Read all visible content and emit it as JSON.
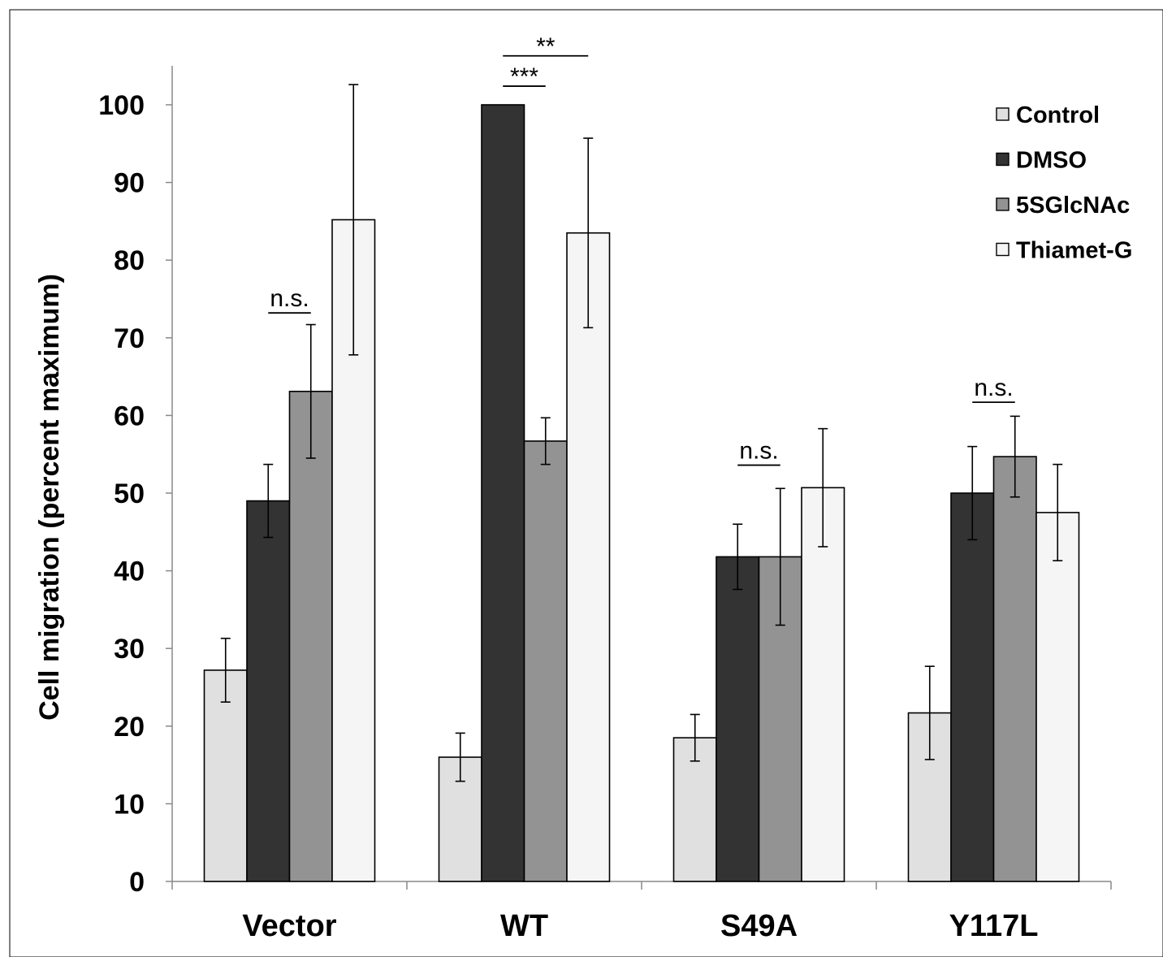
{
  "chart_data": {
    "type": "bar",
    "title": "",
    "xlabel": "",
    "ylabel": "Cell migration (percent maximum)",
    "ylim": [
      0,
      100
    ],
    "yticks": [
      0,
      10,
      20,
      30,
      40,
      50,
      60,
      70,
      80,
      90,
      100
    ],
    "categories": [
      "Vector",
      "WT",
      "S49A",
      "Y117L"
    ],
    "legend_position": "top-right",
    "grid": false,
    "series": [
      {
        "name": "Control",
        "color": "#e0e0e0",
        "values": [
          27.2,
          16.0,
          18.5,
          21.7
        ],
        "errors": [
          4.1,
          3.1,
          3.0,
          6.0
        ]
      },
      {
        "name": "DMSO",
        "color": "#333333",
        "values": [
          49.0,
          100.0,
          41.8,
          50.0
        ],
        "errors": [
          4.7,
          0,
          4.2,
          6.0
        ]
      },
      {
        "name": "5SGlcNAc",
        "color": "#939393",
        "values": [
          63.1,
          56.7,
          41.8,
          54.7
        ],
        "errors": [
          8.6,
          3.0,
          8.8,
          5.2
        ]
      },
      {
        "name": "Thiamet-G",
        "color": "#f4f5f4",
        "values": [
          85.2,
          83.5,
          50.7,
          47.5
        ],
        "errors": [
          17.4,
          12.2,
          7.6,
          6.2
        ]
      }
    ],
    "annotations": [
      {
        "category": "Vector",
        "from_series": 1,
        "to_series": 2,
        "text": "n.s.",
        "y": 73.2
      },
      {
        "category": "WT",
        "from_series": 1,
        "to_series": 2,
        "text": "***",
        "y": 102.4
      },
      {
        "category": "WT",
        "from_series": 1,
        "to_series": 3,
        "text": "**",
        "y": 106.3
      },
      {
        "category": "S49A",
        "from_series": 1,
        "to_series": 2,
        "text": "n.s.",
        "y": 53.6
      },
      {
        "category": "Y117L",
        "from_series": 1,
        "to_series": 2,
        "text": "n.s.",
        "y": 61.7
      }
    ]
  }
}
